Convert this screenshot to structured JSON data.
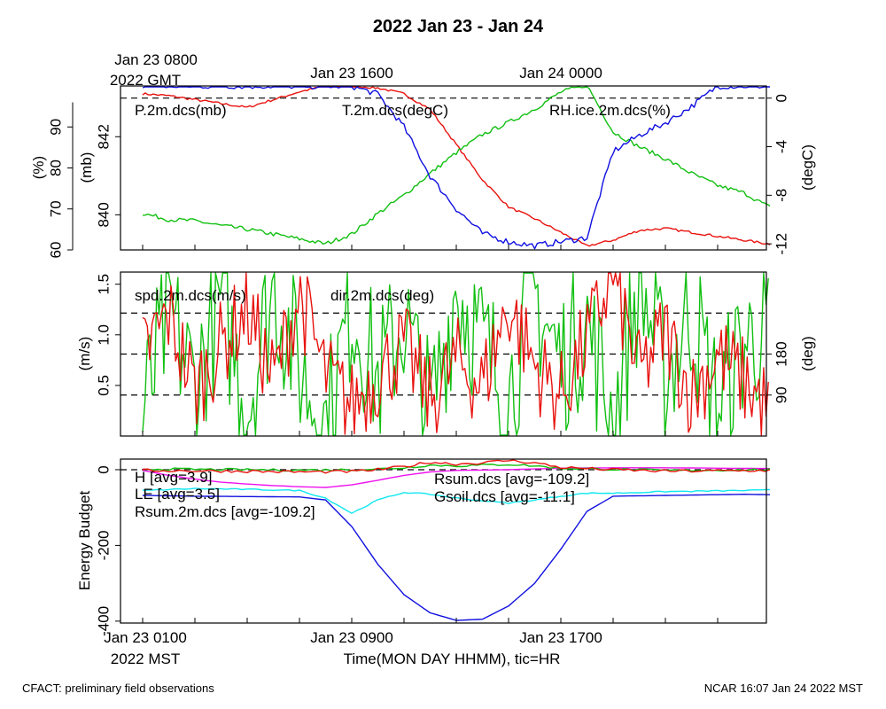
{
  "title": "2022 Jan 23 - Jan 24",
  "footer_left": "CFACT: preliminary field observations",
  "footer_right": "NCAR 16:07 Jan 24 2022 MST",
  "top_axis": {
    "first_label": "Jan 23 0800",
    "timezone": "2022 GMT",
    "labels": [
      {
        "hour": 8,
        "text": "Jan 23 1600"
      },
      {
        "hour": 16,
        "text": "Jan 24 0000"
      }
    ]
  },
  "bottom_axis": {
    "first_label": "Jan 23 0100",
    "timezone": "2022 MST",
    "xlabel": "Time(MON DAY HHMM), tic=HR",
    "labels": [
      {
        "hour": 8,
        "text": "Jan 23 0900"
      },
      {
        "hour": 16,
        "text": "Jan 23 1700"
      }
    ]
  },
  "colors": {
    "red": "#e8120e",
    "green": "#11c011",
    "blue": "#1010e0",
    "cyan": "#11e8f0",
    "magenta": "#ee11ee"
  },
  "chart_data": [
    {
      "type": "line",
      "panel": "pressure-temperature-humidity",
      "x_unit": "hours since Jan 23 0000 MST",
      "xlim": [
        0,
        24
      ],
      "axes": {
        "left_outer": {
          "label": "(%)",
          "range": [
            60,
            100
          ],
          "ticks": [
            60,
            70,
            80,
            90
          ]
        },
        "left_inner": {
          "label": "(mb)",
          "range": [
            839.1,
            843.3
          ],
          "ticks": [
            840,
            842
          ]
        },
        "right": {
          "label": "(degC)",
          "range": [
            -12.5,
            1
          ],
          "ticks": [
            0,
            -4,
            -8,
            -12
          ]
        }
      },
      "reference_line": {
        "axis": "right",
        "value": 0
      },
      "series": [
        {
          "name": "P.2m.dcs(mb)",
          "axis": "left_inner",
          "color": "red",
          "x": [
            0,
            1,
            2,
            3,
            4,
            5,
            6,
            7,
            8,
            9,
            10,
            11,
            12,
            13,
            14,
            15,
            16,
            17,
            18,
            19,
            20,
            21,
            22,
            23,
            24
          ],
          "y": [
            843.1,
            843.05,
            842.95,
            842.85,
            842.75,
            842.95,
            843.15,
            843.3,
            843.3,
            843.25,
            843.1,
            842.7,
            841.8,
            840.9,
            840.2,
            839.9,
            839.55,
            839.2,
            839.35,
            839.6,
            839.65,
            839.55,
            839.45,
            839.35,
            839.25
          ]
        },
        {
          "name": "T.2m.dcs(degC)",
          "axis": "right",
          "color": "green",
          "x": [
            0,
            1,
            2,
            3,
            4,
            5,
            6,
            7,
            8,
            9,
            10,
            11,
            12,
            13,
            14,
            15,
            16,
            17,
            18,
            19,
            20,
            21,
            22,
            23,
            24
          ],
          "y": [
            -9.5,
            -10.0,
            -10.1,
            -10.5,
            -10.8,
            -11.2,
            -11.6,
            -12.0,
            -11.2,
            -9.5,
            -8.0,
            -6.2,
            -4.5,
            -3.0,
            -2.0,
            -0.9,
            0.5,
            1.1,
            -2.8,
            -4.0,
            -5.0,
            -6.2,
            -7.2,
            -7.8,
            -9.0
          ]
        },
        {
          "name": "RH.ice.2m.dcs(%)",
          "axis": "left_outer",
          "color": "blue",
          "x": [
            0,
            1,
            2,
            3,
            4,
            5,
            6,
            7,
            8,
            9,
            10,
            11,
            12,
            13,
            14,
            15,
            16,
            17,
            18,
            19,
            20,
            21,
            22,
            23,
            24
          ],
          "y": [
            100,
            100,
            100,
            100,
            100,
            100,
            100,
            100,
            100,
            98,
            90,
            78,
            70,
            64,
            62,
            61,
            62,
            63,
            84,
            88,
            91,
            95,
            100,
            100,
            100
          ]
        }
      ]
    },
    {
      "type": "line",
      "panel": "wind",
      "x_unit": "hours since Jan 23 0000 MST",
      "xlim": [
        0,
        24
      ],
      "axes": {
        "left": {
          "label": "(m/s)",
          "range": [
            0,
            1.62
          ],
          "ticks": [
            0.5,
            1.0,
            1.5
          ]
        },
        "right": {
          "label": "(deg)",
          "range": [
            0,
            360
          ],
          "ticks": [
            90,
            180
          ]
        }
      },
      "reference_lines": {
        "axis": "right",
        "values": [
          90,
          180,
          270
        ]
      },
      "series": [
        {
          "name": "spd.2m.dcs(m/s)",
          "axis": "left",
          "color": "red",
          "x": [
            0,
            1,
            2,
            3,
            4,
            5,
            6,
            7,
            8,
            9,
            10,
            11,
            12,
            13,
            14,
            15,
            16,
            17,
            18,
            19,
            20,
            21,
            22,
            23,
            24
          ],
          "y": [
            0.8,
            1.2,
            0.45,
            0.9,
            1.25,
            0.55,
            1.4,
            0.6,
            0.3,
            0.6,
            0.9,
            0.35,
            0.75,
            0.5,
            1.3,
            0.7,
            0.4,
            0.95,
            1.6,
            0.6,
            1.05,
            0.4,
            0.8,
            0.55,
            0.25
          ]
        },
        {
          "name": "dir.2m.dcs(deg)",
          "axis": "right",
          "color": "green",
          "x": [
            0,
            1,
            2,
            3,
            4,
            5,
            6,
            7,
            8,
            9,
            10,
            11,
            12,
            13,
            14,
            15,
            16,
            17,
            18,
            19,
            20,
            21,
            22,
            23,
            24
          ],
          "y": [
            40,
            270,
            110,
            300,
            60,
            330,
            150,
            20,
            290,
            120,
            260,
            40,
            330,
            200,
            90,
            310,
            160,
            250,
            30,
            340,
            130,
            280,
            60,
            200,
            240
          ]
        }
      ]
    },
    {
      "type": "line",
      "panel": "energy-budget",
      "x_unit": "hours since Jan 23 0000 MST",
      "xlim": [
        0,
        24
      ],
      "ylabel": "Energy Budget",
      "ylim": [
        -405,
        28
      ],
      "yticks": [
        0,
        -200,
        -400
      ],
      "reference_line": {
        "value": 0
      },
      "series": [
        {
          "name": "H [avg=3.9]",
          "color": "red",
          "x": [
            0,
            2,
            4,
            6,
            8,
            9,
            10,
            11,
            12,
            13,
            14,
            15,
            16,
            18,
            20,
            22,
            24
          ],
          "y": [
            -2,
            -3,
            -4,
            -6,
            -5,
            0,
            8,
            20,
            15,
            18,
            25,
            18,
            6,
            0,
            -4,
            -3,
            -2
          ]
        },
        {
          "name": "LE [avg=3.5]",
          "color": "green",
          "x": [
            0,
            2,
            4,
            6,
            8,
            9,
            10,
            11,
            12,
            13,
            14,
            15,
            16,
            18,
            20,
            22,
            24
          ],
          "y": [
            2,
            1,
            0,
            -1,
            0,
            2,
            5,
            12,
            10,
            12,
            14,
            10,
            4,
            1,
            -2,
            -1,
            0
          ]
        },
        {
          "name": "Rsum.2m.dcs [avg=-109.2]",
          "color": "blue",
          "x": [
            0,
            2,
            4,
            6,
            7,
            8,
            9,
            10,
            11,
            12,
            13,
            14,
            15,
            16,
            17,
            18,
            20,
            22,
            23,
            24
          ],
          "y": [
            -68,
            -70,
            -71,
            -72,
            -80,
            -150,
            -250,
            -330,
            -378,
            -398,
            -395,
            -360,
            -300,
            -210,
            -110,
            -70,
            -68,
            -66,
            -65,
            -66
          ]
        },
        {
          "name": "Rsum.dcs [avg=-109.2]",
          "color": "cyan",
          "x": [
            0,
            2,
            4,
            6,
            7,
            8,
            9,
            10,
            11,
            12,
            13,
            14,
            15,
            16,
            17,
            18,
            20,
            22,
            24
          ],
          "y": [
            -55,
            -50,
            -52,
            -55,
            -75,
            -115,
            -80,
            -60,
            -65,
            -75,
            -82,
            -88,
            -80,
            -70,
            -62,
            -62,
            -58,
            -56,
            -54
          ]
        },
        {
          "name": "Gsoil.dcs [avg=-11.1]",
          "color": "magenta",
          "x": [
            0,
            1,
            2,
            3,
            4,
            5,
            6,
            7,
            8,
            9,
            10,
            11,
            12,
            14,
            16,
            18,
            20,
            22,
            24
          ],
          "y": [
            -2,
            -15,
            -25,
            -33,
            -38,
            -42,
            -45,
            -47,
            -40,
            -28,
            -15,
            -6,
            -2,
            0,
            4,
            5,
            5,
            4,
            3
          ]
        }
      ]
    }
  ]
}
